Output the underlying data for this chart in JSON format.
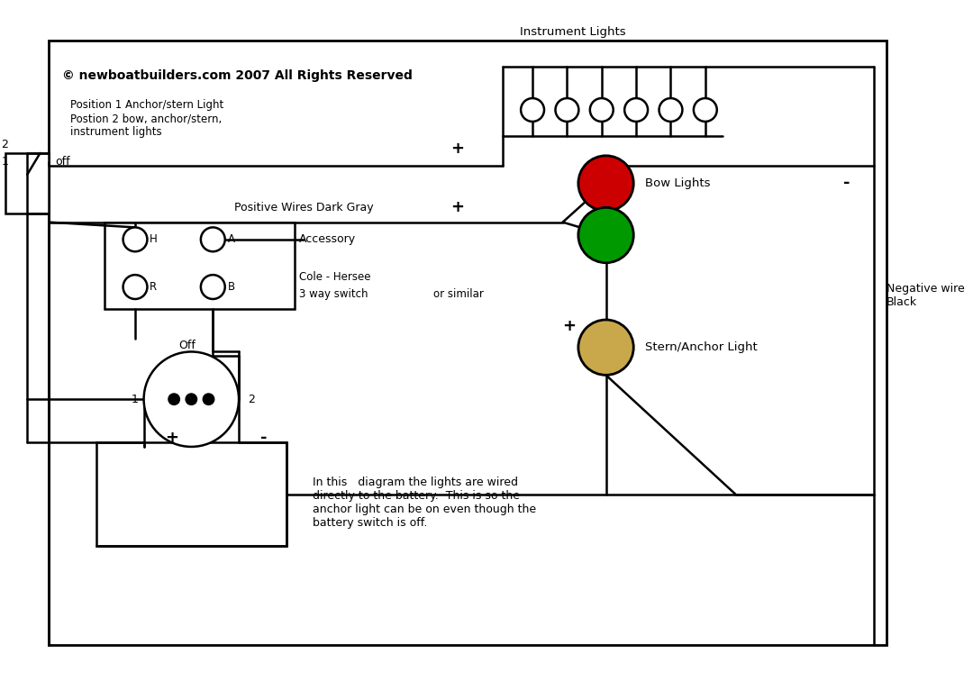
{
  "background_color": "#ffffff",
  "line_color": "#000000",
  "fig_width": 10.8,
  "fig_height": 7.56,
  "copyright": "© newboatbuilders.com 2007 All Rights Reserved",
  "inst_lights_label": "Instrument Lights",
  "bow_lights_label": "Bow Lights",
  "stern_label": "Stern/Anchor Light",
  "neg_wire_label": "Negative wire\nBlack",
  "pos_wire_label": "Positive Wires Dark Gray",
  "accessory_label": "Accessory",
  "cole_line1": "Cole - Hersee",
  "cole_line2": "3 way switch",
  "or_similar": "or similar",
  "position_label": "Position 1 Anchor/stern Light\nPostion 2 bow, anchor/stern,\ninstrument lights",
  "off_top": "off",
  "off_rotary": "Off",
  "num1": "1",
  "num2": "2",
  "plus": "+",
  "minus": "-",
  "H_label": "H",
  "A_label": "A",
  "R_label": "R",
  "B_label": "B",
  "battery_note": "In this   diagram the lights are wired\ndirectly to the battery.  This is so the\nanchor light can be on even though the\nbattery switch is off.",
  "red_color": "#cc0000",
  "green_color": "#009900",
  "tan_color": "#c8a84b",
  "lw": 1.8
}
